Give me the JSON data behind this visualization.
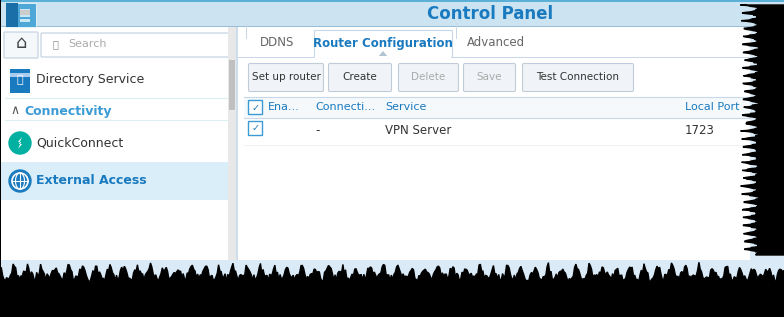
{
  "title": "Control Panel",
  "title_color": "#1a7abf",
  "header_bg_top": "#b8d9ee",
  "header_bg_bottom": "#e0f0fa",
  "header_top_line": "#5bb0d8",
  "sidebar_bg": "#ffffff",
  "sidebar_selected_bg": "#d9eef8",
  "content_bg": "#ffffff",
  "tabs": [
    "DDNS",
    "Router Configuration",
    "Advanced"
  ],
  "active_tab": "Router Configuration",
  "tab_active_color": "#1a7abf",
  "tab_inactive_color": "#666666",
  "buttons": [
    "Set up router",
    "Create",
    "Delete",
    "Save",
    "Test Connection"
  ],
  "btn_text_active": "#333333",
  "btn_text_disabled": "#aaaaaa",
  "btn_disabled": [
    false,
    false,
    true,
    true,
    false
  ],
  "table_headers": [
    "Ena...",
    "Connecti...",
    "Service",
    "Local Port"
  ],
  "table_header_color": "#1a7abf",
  "table_row_data": [
    "-",
    "VPN Server",
    "1723"
  ],
  "checkbox_border": "#3a9bd5",
  "checkbox_check": "#1a7abf",
  "row_text_color": "#333333",
  "sidebar_border_color": "#ccddee",
  "tab_line_color": "#c8d8e8",
  "btn_border_color": "#c0ccd8",
  "btn_bg": "#f0f4f8",
  "search_text": "Search",
  "search_border": "#c0d0e0",
  "home_border": "#c0d0e0",
  "connectivity_color": "#3a9bd5",
  "quickconnect_icon_color": "#00b0a0",
  "external_icon_color": "#1a7abf",
  "dir_icon_color": "#1a7abf",
  "scrollbar_track": "#e8e8e8",
  "scrollbar_thumb": "#c0c0c0",
  "jagged_color": "#000000",
  "overall_bg": "#daeaf6"
}
